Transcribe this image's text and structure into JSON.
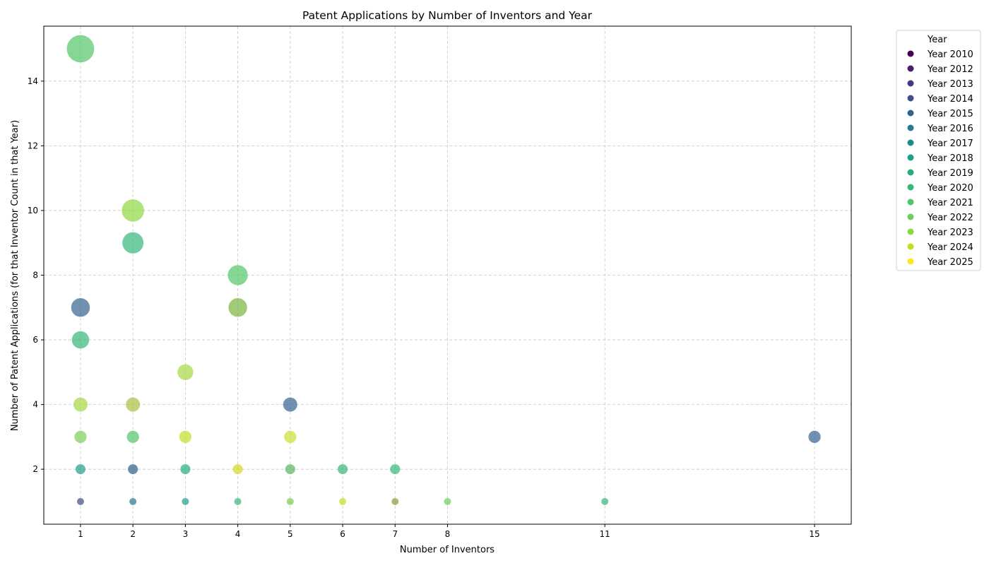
{
  "chart_data": {
    "type": "scatter",
    "title": "Patent Applications by Number of Inventors and Year",
    "xlabel": "Number of Inventors",
    "ylabel": "Number of Patent Applications (for that Inventor Count in that Year)",
    "xlim": [
      0.3,
      15.7
    ],
    "ylim": [
      0.3,
      15.7
    ],
    "x_ticks": [
      1,
      2,
      3,
      4,
      5,
      6,
      7,
      8,
      11,
      15
    ],
    "y_ticks": [
      2,
      4,
      6,
      8,
      10,
      12,
      14
    ],
    "grid": true,
    "legend": {
      "title": "Year",
      "placement": "outside-top-right",
      "entries": [
        {
          "label": "Year 2010",
          "color": "#440154"
        },
        {
          "label": "Year 2012",
          "color": "#481c6e"
        },
        {
          "label": "Year 2013",
          "color": "#453781"
        },
        {
          "label": "Year 2014",
          "color": "#3d4e8a"
        },
        {
          "label": "Year 2015",
          "color": "#33638d"
        },
        {
          "label": "Year 2016",
          "color": "#2a788e"
        },
        {
          "label": "Year 2017",
          "color": "#218a8d"
        },
        {
          "label": "Year 2018",
          "color": "#1f9e89"
        },
        {
          "label": "Year 2019",
          "color": "#25ab82"
        },
        {
          "label": "Year 2020",
          "color": "#35b779"
        },
        {
          "label": "Year 2021",
          "color": "#52c569"
        },
        {
          "label": "Year 2022",
          "color": "#6ece58"
        },
        {
          "label": "Year 2023",
          "color": "#90d743"
        },
        {
          "label": "Year 2024",
          "color": "#bddf26"
        },
        {
          "label": "Year 2025",
          "color": "#fde725"
        }
      ]
    },
    "points": [
      {
        "x": 1,
        "y": 15,
        "color": "#52c569"
      },
      {
        "x": 2,
        "y": 10,
        "color": "#90d743"
      },
      {
        "x": 2,
        "y": 9,
        "color": "#35b779"
      },
      {
        "x": 4,
        "y": 8,
        "color": "#52c569"
      },
      {
        "x": 1,
        "y": 7,
        "color": "#33638d"
      },
      {
        "x": 4,
        "y": 7,
        "color": "#7ab540"
      },
      {
        "x": 1,
        "y": 6,
        "color": "#35b779"
      },
      {
        "x": 3,
        "y": 5,
        "color": "#a5d843"
      },
      {
        "x": 1,
        "y": 4,
        "color": "#a5d843"
      },
      {
        "x": 2,
        "y": 4,
        "color": "#a8c040"
      },
      {
        "x": 5,
        "y": 4,
        "color": "#33638d"
      },
      {
        "x": 1,
        "y": 3,
        "color": "#7ece58"
      },
      {
        "x": 2,
        "y": 3,
        "color": "#52c569"
      },
      {
        "x": 3,
        "y": 3,
        "color": "#bddf26"
      },
      {
        "x": 5,
        "y": 3,
        "color": "#c8df30"
      },
      {
        "x": 15,
        "y": 3,
        "color": "#33638d"
      },
      {
        "x": 1,
        "y": 2,
        "color": "#1f9e89"
      },
      {
        "x": 2,
        "y": 2,
        "color": "#2a5f8a"
      },
      {
        "x": 3,
        "y": 2,
        "color": "#25ab82"
      },
      {
        "x": 4,
        "y": 2,
        "color": "#d6d81e"
      },
      {
        "x": 5,
        "y": 2,
        "color": "#5db35e"
      },
      {
        "x": 6,
        "y": 2,
        "color": "#35b779"
      },
      {
        "x": 7,
        "y": 2,
        "color": "#35b779"
      },
      {
        "x": 1,
        "y": 1,
        "color": "#3d4e8a"
      },
      {
        "x": 2,
        "y": 1,
        "color": "#2a788e"
      },
      {
        "x": 3,
        "y": 1,
        "color": "#1f9e89"
      },
      {
        "x": 4,
        "y": 1,
        "color": "#35b779"
      },
      {
        "x": 5,
        "y": 1,
        "color": "#7fc850"
      },
      {
        "x": 6,
        "y": 1,
        "color": "#bddf26"
      },
      {
        "x": 7,
        "y": 1,
        "color": "#8a9a3a"
      },
      {
        "x": 8,
        "y": 1,
        "color": "#6ece58"
      },
      {
        "x": 11,
        "y": 1,
        "color": "#35b779"
      }
    ]
  }
}
